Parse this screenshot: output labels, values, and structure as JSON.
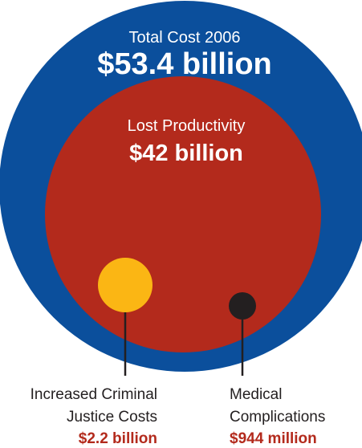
{
  "chart_data": {
    "type": "bubble",
    "units": "USD",
    "bubbles": [
      {
        "id": "total",
        "label": "Total Cost 2006",
        "value_label": "$53.4 billion",
        "value": 53.4,
        "color": "#0b4f9c"
      },
      {
        "id": "productivity",
        "label": "Lost Productivity",
        "value_label": "$42 billion",
        "value": 42,
        "color": "#b32a1c"
      },
      {
        "id": "criminal",
        "label_lines": [
          "Increased Criminal",
          "Justice Costs"
        ],
        "value_label": "$2.2 billion",
        "value": 2.2,
        "color": "#fbb614"
      },
      {
        "id": "medical",
        "label_lines": [
          "Medical",
          "Complications"
        ],
        "value_label": "$944 million",
        "value": 0.944,
        "color": "#231f20"
      }
    ]
  }
}
